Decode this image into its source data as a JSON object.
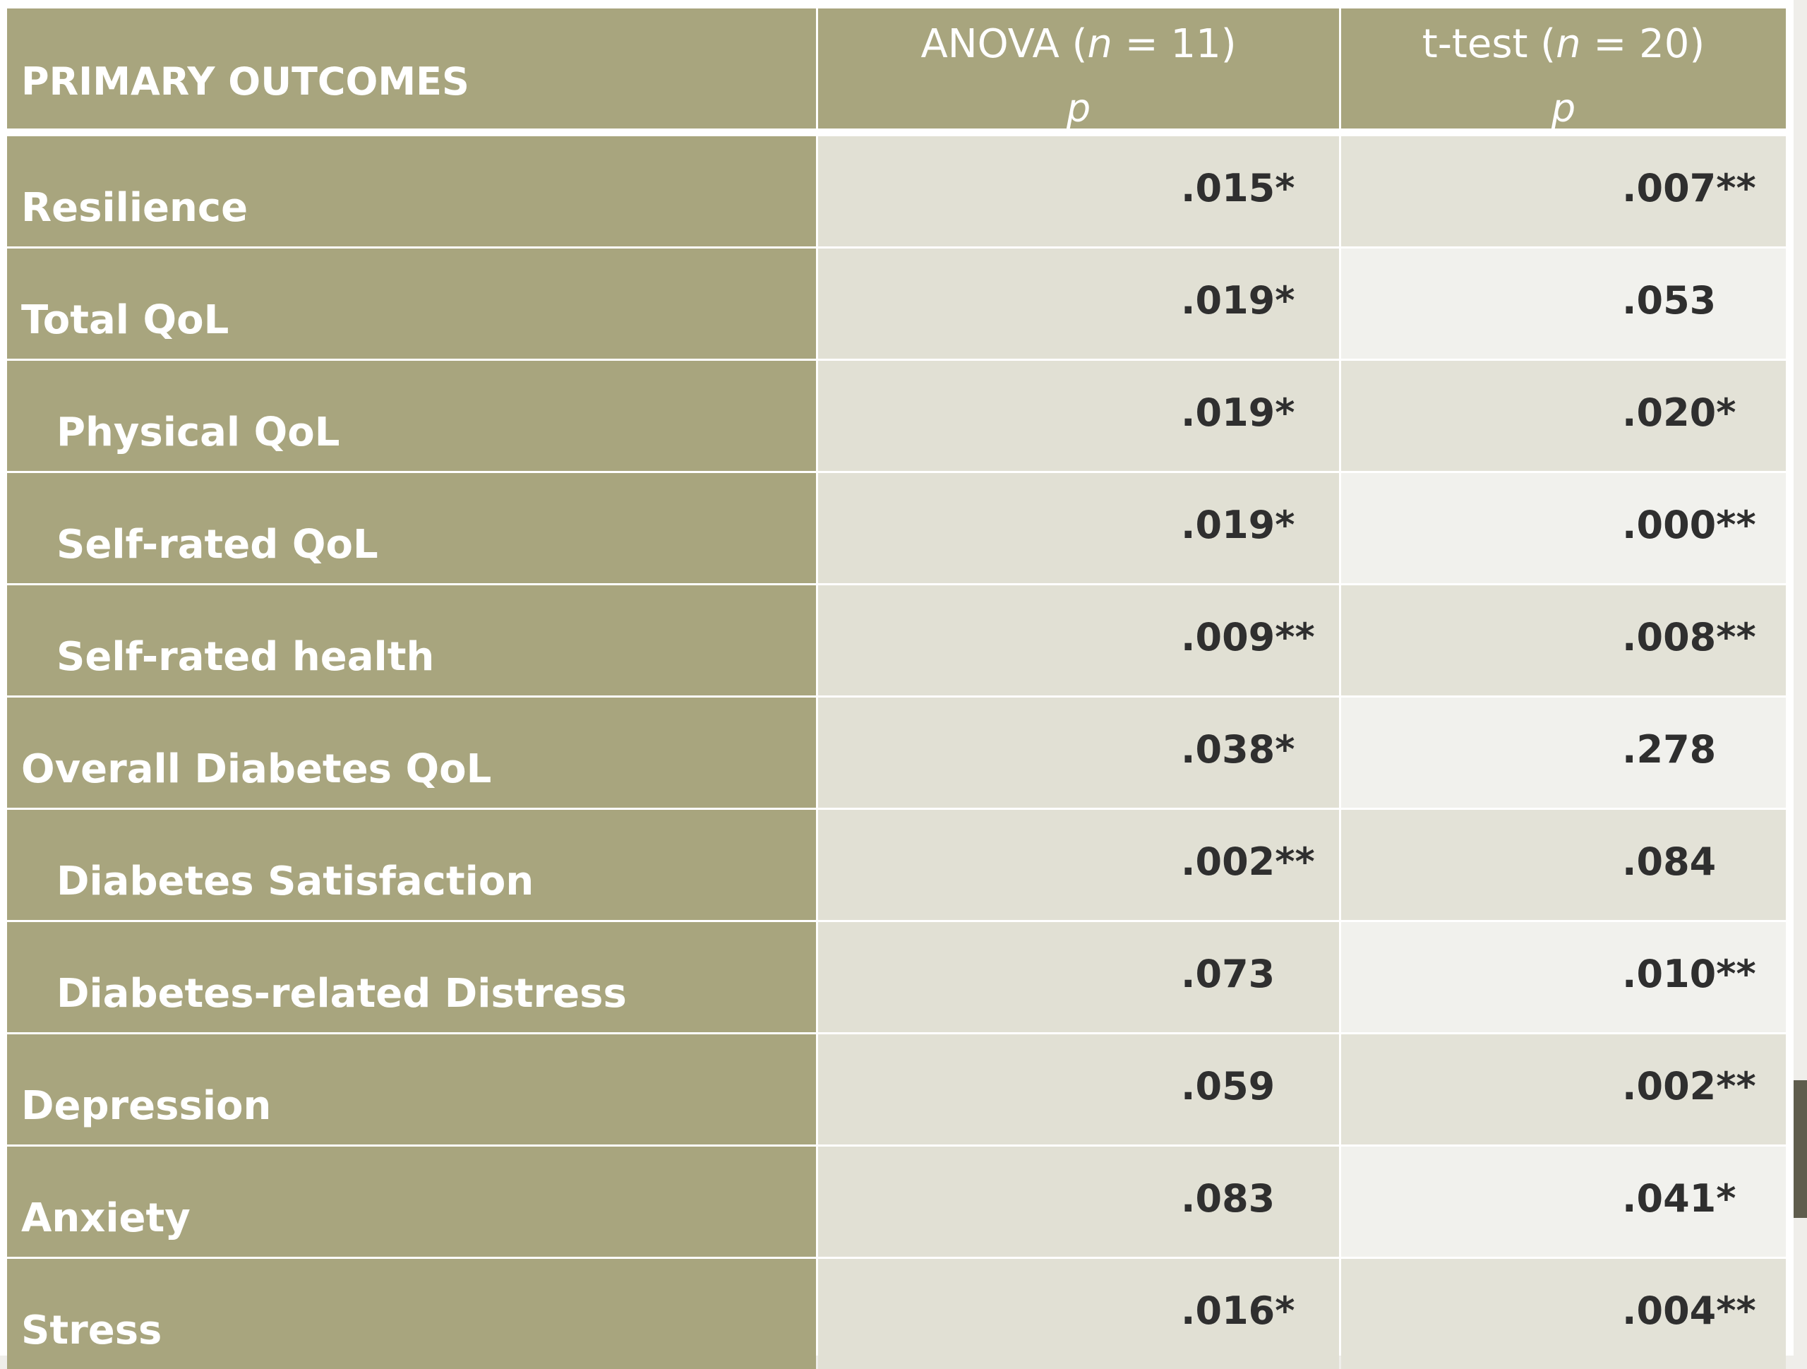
{
  "table": {
    "header": {
      "label": "PRIMARY OUTCOMES",
      "anova_label": "ANOVA (",
      "anova_n": "n",
      "anova_rest": " = 11)",
      "ttest_label": "t-test  (",
      "ttest_n": "n",
      "ttest_rest": " = 20)",
      "p_label": "p"
    },
    "rows": [
      {
        "outcome": "Resilience",
        "anova": ".015*",
        "ttest": ".007**"
      },
      {
        "outcome": "Total QoL",
        "anova": ".019*",
        "ttest": ".053"
      },
      {
        "outcome": "Physical QoL",
        "anova": ".019*",
        "ttest": ".020*"
      },
      {
        "outcome": "Self-rated QoL",
        "anova": ".019*",
        "ttest": ".000**"
      },
      {
        "outcome": "Self-rated health",
        "anova": ".009**",
        "ttest": ".008**"
      },
      {
        "outcome": "Overall Diabetes QoL",
        "anova": ".038*",
        "ttest": ".278"
      },
      {
        "outcome": "Diabetes Satisfaction",
        "anova": ".002**",
        "ttest": ".084"
      },
      {
        "outcome": "Diabetes-related Distress",
        "anova": ".073",
        "ttest": ".010**"
      },
      {
        "outcome": "Depression",
        "anova": ".059",
        "ttest": ".002**"
      },
      {
        "outcome": "Anxiety",
        "anova": ".083",
        "ttest": ".041*"
      },
      {
        "outcome": "Stress",
        "anova": ".016*",
        "ttest": ".004**"
      }
    ]
  },
  "colors": {
    "label_column": "#a8a57e",
    "anova_cells": "#e1e0d4",
    "ttest_shaded": "#e3e2d7",
    "ttest_light": "#f1f1ed",
    "value_text": "#2f2f2f",
    "header_text": "#ffffff",
    "side_accent": "#5f5d4d"
  }
}
